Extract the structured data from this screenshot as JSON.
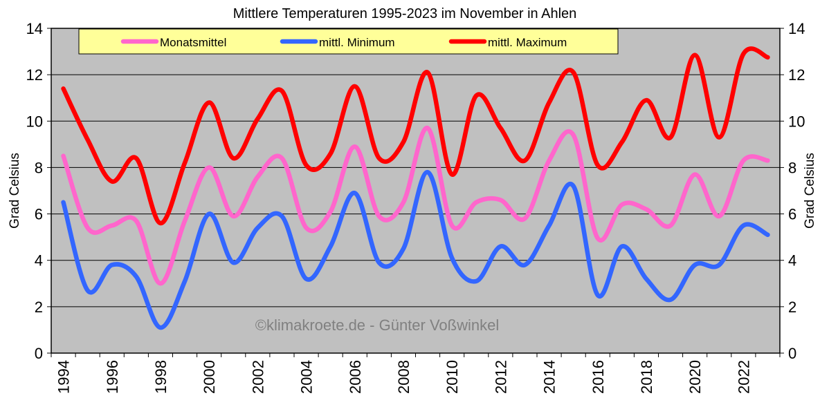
{
  "chart_data": {
    "type": "line",
    "title": "Mittlere Temperaturen 1995-2023 im November in Ahlen",
    "ylabel": "Grad Celsius",
    "ylabel_right": "Grad Celsius",
    "xlabel": "",
    "ylim": [
      0,
      14
    ],
    "yticks": [
      "0",
      "2",
      "4",
      "6",
      "8",
      "10",
      "12",
      "14"
    ],
    "x": [
      1994,
      1995,
      1996,
      1997,
      1998,
      1999,
      2000,
      2001,
      2002,
      2003,
      2004,
      2005,
      2006,
      2007,
      2008,
      2009,
      2010,
      2011,
      2012,
      2013,
      2014,
      2015,
      2016,
      2017,
      2018,
      2019,
      2020,
      2021,
      2022,
      2023
    ],
    "xtick_labels": [
      "1994",
      "1996",
      "1998",
      "2000",
      "2002",
      "2004",
      "2006",
      "2008",
      "2010",
      "2012",
      "2014",
      "2016",
      "2018",
      "2020",
      "2022"
    ],
    "grid": true,
    "smooth": true,
    "legend_position": "top",
    "series": [
      {
        "name": "Monatsmittel",
        "color": "#FF66CC",
        "values": [
          8.5,
          5.4,
          5.5,
          5.7,
          3.0,
          5.7,
          8.0,
          5.9,
          7.6,
          8.4,
          5.4,
          6.1,
          8.9,
          5.9,
          6.5,
          9.7,
          5.5,
          6.5,
          6.6,
          5.8,
          8.3,
          9.4,
          4.95,
          6.4,
          6.2,
          5.5,
          7.7,
          5.9,
          8.3,
          8.3
        ]
      },
      {
        "name": "mittl. Minimum",
        "color": "#3366FF",
        "values": [
          6.5,
          2.7,
          3.8,
          3.3,
          1.1,
          3.1,
          6.0,
          3.9,
          5.4,
          5.9,
          3.2,
          4.6,
          6.9,
          3.9,
          4.5,
          7.8,
          4.1,
          3.1,
          4.6,
          3.8,
          5.5,
          7.2,
          2.5,
          4.6,
          3.2,
          2.3,
          3.8,
          3.8,
          5.5,
          5.1
        ]
      },
      {
        "name": "mittl. Maximum",
        "color": "#FF0000",
        "values": [
          11.4,
          9.2,
          7.4,
          8.4,
          5.6,
          8.2,
          10.8,
          8.4,
          10.1,
          11.3,
          8.1,
          8.6,
          11.5,
          8.4,
          9.1,
          12.1,
          7.7,
          11.1,
          9.7,
          8.3,
          10.8,
          12.1,
          8.1,
          9.1,
          10.9,
          9.3,
          12.85,
          9.3,
          12.9,
          12.75
        ]
      }
    ],
    "watermark": "©klimakroete.de - Günter Voßwinkel",
    "plot_background": "#C0C0C0",
    "legend_background": "#FFFF99"
  }
}
